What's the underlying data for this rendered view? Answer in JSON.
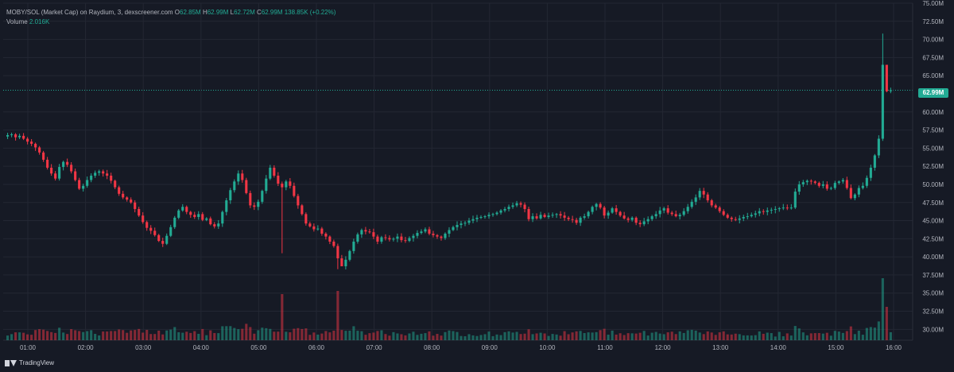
{
  "legend": {
    "pair": "MOBY/SOL (Market Cap) on Raydium, 3, dexscreener.com",
    "o_label": "O",
    "o_value": "62.85M",
    "h_label": "H",
    "h_value": "62.99M",
    "l_label": "L",
    "l_value": "62.72M",
    "c_label": "C",
    "c_value": "62.99M",
    "change": "138.85K (+0.22%)",
    "volume_label": "Volume",
    "volume_value": "2.016K"
  },
  "last_price_label": "62.99M",
  "branding": "TradingView",
  "colors": {
    "up": "#22ab94",
    "down": "#f23645",
    "bg": "#161a25",
    "grid": "#232733",
    "text": "#b2b5be"
  },
  "chart_data": {
    "type": "candlestick",
    "title": "MOBY/SOL (Market Cap) on Raydium, 3, dexscreener.com",
    "interval_minutes": 3,
    "y_unit": "M",
    "ylim": [
      28.5,
      75.0
    ],
    "y_ticks": [
      "75.00M",
      "72.50M",
      "70.00M",
      "67.50M",
      "65.00M",
      "62.99M",
      "60.00M",
      "57.50M",
      "55.00M",
      "52.50M",
      "50.00M",
      "47.50M",
      "45.00M",
      "42.50M",
      "40.00M",
      "37.50M",
      "35.00M",
      "32.50M",
      "30.00M"
    ],
    "x_ticks": [
      "01:00",
      "02:00",
      "03:00",
      "04:00",
      "05:00",
      "06:00",
      "07:00",
      "08:00",
      "09:00",
      "10:00",
      "11:00",
      "12:00",
      "13:00",
      "14:00",
      "15:00",
      "16:00"
    ],
    "x_start_hour": 0.65,
    "x_end_hour": 15.95,
    "last_close": 62.99,
    "closes": [
      56.8,
      56.9,
      56.5,
      56.7,
      56.3,
      55.9,
      55.6,
      55.1,
      54.4,
      53.4,
      52.3,
      51.5,
      50.8,
      52.4,
      53.1,
      52.7,
      51.8,
      50.6,
      49.4,
      49.8,
      50.6,
      51.2,
      51.6,
      51.8,
      51.5,
      51.2,
      50.5,
      49.6,
      48.7,
      48.2,
      47.9,
      47.5,
      46.6,
      45.7,
      44.8,
      44.0,
      43.6,
      43.0,
      42.2,
      41.8,
      42.9,
      44.1,
      45.4,
      46.4,
      46.9,
      46.2,
      45.8,
      45.5,
      45.9,
      45.1,
      45.3,
      44.5,
      44.2,
      44.6,
      46.2,
      47.8,
      49.2,
      50.4,
      51.5,
      50.6,
      48.8,
      47.1,
      46.9,
      47.6,
      49.1,
      50.8,
      52.3,
      51.2,
      50.1,
      49.6,
      50.4,
      49.8,
      48.4,
      47.1,
      45.9,
      44.6,
      44.2,
      43.8,
      43.9,
      43.2,
      42.8,
      42.1,
      41.5,
      39.8,
      38.7,
      39.6,
      40.8,
      42.1,
      43.1,
      43.7,
      43.5,
      43.4,
      42.8,
      42.1,
      42.7,
      42.6,
      42.4,
      42.5,
      42.8,
      42.3,
      42.2,
      42.6,
      42.9,
      43.3,
      43.5,
      43.8,
      43.2,
      43.0,
      42.8,
      42.6,
      43.2,
      43.7,
      44.1,
      44.4,
      44.6,
      44.7,
      45.0,
      45.2,
      45.4,
      45.5,
      45.6,
      45.8,
      45.9,
      46.1,
      46.4,
      46.6,
      46.9,
      47.1,
      47.4,
      47.2,
      46.6,
      45.2,
      45.6,
      45.3,
      45.8,
      45.5,
      45.7,
      45.8,
      45.9,
      45.7,
      45.4,
      45.2,
      45.1,
      44.7,
      45.4,
      45.6,
      46.2,
      46.9,
      47.3,
      46.8,
      45.7,
      46.1,
      46.7,
      46.2,
      45.7,
      45.3,
      45.1,
      45.4,
      44.7,
      44.5,
      44.9,
      45.2,
      45.6,
      45.9,
      46.4,
      46.7,
      46.1,
      45.9,
      45.6,
      45.8,
      46.3,
      46.9,
      47.6,
      48.2,
      49.1,
      48.6,
      47.8,
      47.1,
      46.8,
      46.3,
      45.8,
      45.4,
      45.2,
      45.1,
      45.3,
      45.5,
      45.6,
      45.8,
      46.0,
      46.3,
      46.2,
      46.4,
      46.5,
      46.6,
      46.7,
      46.8,
      46.7,
      46.8,
      49.0,
      50.0,
      50.3,
      50.5,
      50.4,
      50.2,
      49.8,
      50.0,
      49.4,
      49.5,
      50.2,
      50.4,
      50.6,
      49.5,
      48.1,
      48.6,
      49.5,
      49.8,
      50.9,
      52.3,
      54.0,
      56.3,
      66.5,
      62.85,
      62.99
    ]
  }
}
